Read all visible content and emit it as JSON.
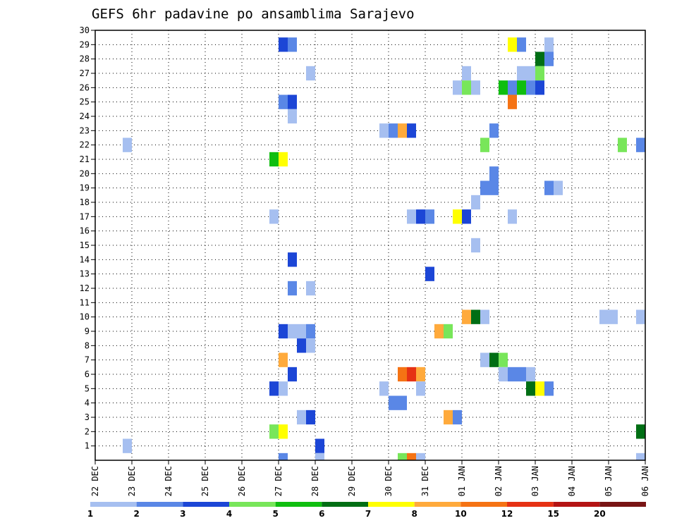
{
  "chart_data": {
    "type": "heatmap",
    "title": "GEFS 6hr padavine po ansamblima Sarajevo",
    "xlabel": "",
    "ylabel": "",
    "x_ticks": [
      "22 DEC",
      "23 DEC",
      "24 DEC",
      "25 DEC",
      "26 DEC",
      "27 DEC",
      "28 DEC",
      "29 DEC",
      "30 DEC",
      "31 DEC",
      "01 JAN",
      "02 JAN",
      "03 JAN",
      "04 JAN",
      "05 JAN",
      "06 JAN"
    ],
    "y_ticks": [
      "1",
      "2",
      "3",
      "4",
      "5",
      "6",
      "7",
      "8",
      "9",
      "10",
      "11",
      "12",
      "13",
      "14",
      "15",
      "16",
      "17",
      "18",
      "19",
      "20",
      "21",
      "22",
      "23",
      "24",
      "25",
      "26",
      "27",
      "28",
      "29",
      "30"
    ],
    "xlim_days": [
      0,
      15
    ],
    "ylim": [
      0,
      30
    ],
    "grid": true,
    "legend": {
      "placement": "bottom",
      "labels": [
        "1",
        "2",
        "3",
        "4",
        "5",
        "6",
        "7",
        "8",
        "10",
        "12",
        "15",
        "20"
      ],
      "colors": [
        "#a6bff0",
        "#5a87e6",
        "#1c46d6",
        "#78e65a",
        "#0fbe0f",
        "#006e14",
        "#ffff00",
        "#ffaa3c",
        "#f57314",
        "#e63214",
        "#b41414",
        "#781414"
      ]
    },
    "cell_width_days": 0.25,
    "cell_height": 1,
    "cells": [
      {
        "x": 5.0,
        "y": 29,
        "c": 2
      },
      {
        "x": 5.25,
        "y": 29,
        "c": 1
      },
      {
        "x": 11.25,
        "y": 29,
        "c": 6
      },
      {
        "x": 11.5,
        "y": 29,
        "c": 1
      },
      {
        "x": 12.25,
        "y": 29,
        "c": 0
      },
      {
        "x": 12.0,
        "y": 28,
        "c": 5
      },
      {
        "x": 12.25,
        "y": 28,
        "c": 1
      },
      {
        "x": 5.75,
        "y": 27,
        "c": 0
      },
      {
        "x": 10.0,
        "y": 27,
        "c": 0
      },
      {
        "x": 11.5,
        "y": 27,
        "c": 0
      },
      {
        "x": 11.75,
        "y": 27,
        "c": 0
      },
      {
        "x": 12.0,
        "y": 27,
        "c": 3
      },
      {
        "x": 9.75,
        "y": 26,
        "c": 0
      },
      {
        "x": 10.0,
        "y": 26,
        "c": 3
      },
      {
        "x": 10.25,
        "y": 26,
        "c": 0
      },
      {
        "x": 11.0,
        "y": 26,
        "c": 4
      },
      {
        "x": 11.25,
        "y": 26,
        "c": 1
      },
      {
        "x": 11.5,
        "y": 26,
        "c": 4
      },
      {
        "x": 11.75,
        "y": 26,
        "c": 1
      },
      {
        "x": 12.0,
        "y": 26,
        "c": 2
      },
      {
        "x": 5.0,
        "y": 25,
        "c": 1
      },
      {
        "x": 5.25,
        "y": 25,
        "c": 2
      },
      {
        "x": 11.25,
        "y": 25,
        "c": 8
      },
      {
        "x": 5.25,
        "y": 24,
        "c": 0
      },
      {
        "x": 7.75,
        "y": 23,
        "c": 0
      },
      {
        "x": 8.0,
        "y": 23,
        "c": 1
      },
      {
        "x": 8.25,
        "y": 23,
        "c": 7
      },
      {
        "x": 8.5,
        "y": 23,
        "c": 2
      },
      {
        "x": 10.75,
        "y": 23,
        "c": 1
      },
      {
        "x": 0.75,
        "y": 22,
        "c": 0
      },
      {
        "x": 10.5,
        "y": 22,
        "c": 3
      },
      {
        "x": 14.25,
        "y": 22,
        "c": 3
      },
      {
        "x": 14.75,
        "y": 22,
        "c": 1
      },
      {
        "x": 4.75,
        "y": 21,
        "c": 4
      },
      {
        "x": 5.0,
        "y": 21,
        "c": 6
      },
      {
        "x": 10.75,
        "y": 20,
        "c": 1
      },
      {
        "x": 10.5,
        "y": 19,
        "c": 1
      },
      {
        "x": 10.75,
        "y": 19,
        "c": 1
      },
      {
        "x": 12.25,
        "y": 19,
        "c": 1
      },
      {
        "x": 12.5,
        "y": 19,
        "c": 0
      },
      {
        "x": 10.25,
        "y": 18,
        "c": 0
      },
      {
        "x": 4.75,
        "y": 17,
        "c": 0
      },
      {
        "x": 8.5,
        "y": 17,
        "c": 0
      },
      {
        "x": 8.75,
        "y": 17,
        "c": 2
      },
      {
        "x": 9.0,
        "y": 17,
        "c": 1
      },
      {
        "x": 9.75,
        "y": 17,
        "c": 6
      },
      {
        "x": 10.0,
        "y": 17,
        "c": 2
      },
      {
        "x": 11.25,
        "y": 17,
        "c": 0
      },
      {
        "x": 10.25,
        "y": 15,
        "c": 0
      },
      {
        "x": 5.25,
        "y": 14,
        "c": 2
      },
      {
        "x": 9.0,
        "y": 13,
        "c": 2
      },
      {
        "x": 5.25,
        "y": 12,
        "c": 1
      },
      {
        "x": 5.75,
        "y": 12,
        "c": 0
      },
      {
        "x": 10.0,
        "y": 10,
        "c": 7
      },
      {
        "x": 10.25,
        "y": 10,
        "c": 5
      },
      {
        "x": 10.5,
        "y": 10,
        "c": 0
      },
      {
        "x": 13.75,
        "y": 10,
        "c": 0
      },
      {
        "x": 14.0,
        "y": 10,
        "c": 0
      },
      {
        "x": 14.75,
        "y": 10,
        "c": 0
      },
      {
        "x": 5.0,
        "y": 9,
        "c": 2
      },
      {
        "x": 5.25,
        "y": 9,
        "c": 0
      },
      {
        "x": 5.5,
        "y": 9,
        "c": 0
      },
      {
        "x": 5.75,
        "y": 9,
        "c": 1
      },
      {
        "x": 9.25,
        "y": 9,
        "c": 7
      },
      {
        "x": 9.5,
        "y": 9,
        "c": 3
      },
      {
        "x": 5.5,
        "y": 8,
        "c": 2
      },
      {
        "x": 5.75,
        "y": 8,
        "c": 0
      },
      {
        "x": 5.0,
        "y": 7,
        "c": 7
      },
      {
        "x": 10.5,
        "y": 7,
        "c": 0
      },
      {
        "x": 10.75,
        "y": 7,
        "c": 5
      },
      {
        "x": 11.0,
        "y": 7,
        "c": 3
      },
      {
        "x": 5.25,
        "y": 6,
        "c": 2
      },
      {
        "x": 8.25,
        "y": 6,
        "c": 8
      },
      {
        "x": 8.5,
        "y": 6,
        "c": 9
      },
      {
        "x": 8.75,
        "y": 6,
        "c": 7
      },
      {
        "x": 11.0,
        "y": 6,
        "c": 0
      },
      {
        "x": 11.25,
        "y": 6,
        "c": 1
      },
      {
        "x": 11.5,
        "y": 6,
        "c": 1
      },
      {
        "x": 11.75,
        "y": 6,
        "c": 0
      },
      {
        "x": 4.75,
        "y": 5,
        "c": 2
      },
      {
        "x": 5.0,
        "y": 5,
        "c": 0
      },
      {
        "x": 7.75,
        "y": 5,
        "c": 0
      },
      {
        "x": 8.75,
        "y": 5,
        "c": 0
      },
      {
        "x": 11.75,
        "y": 5,
        "c": 5
      },
      {
        "x": 12.0,
        "y": 5,
        "c": 6
      },
      {
        "x": 12.25,
        "y": 5,
        "c": 1
      },
      {
        "x": 8.0,
        "y": 4,
        "c": 1
      },
      {
        "x": 8.25,
        "y": 4,
        "c": 1
      },
      {
        "x": 5.5,
        "y": 3,
        "c": 0
      },
      {
        "x": 5.75,
        "y": 3,
        "c": 2
      },
      {
        "x": 9.5,
        "y": 3,
        "c": 7
      },
      {
        "x": 9.75,
        "y": 3,
        "c": 1
      },
      {
        "x": 4.75,
        "y": 2,
        "c": 3
      },
      {
        "x": 5.0,
        "y": 2,
        "c": 6
      },
      {
        "x": 14.75,
        "y": 2,
        "c": 5
      },
      {
        "x": 0.75,
        "y": 1,
        "c": 0
      },
      {
        "x": 6.0,
        "y": 1,
        "c": 2
      },
      {
        "x": 5.0,
        "y": 0,
        "c": 1
      },
      {
        "x": 6.0,
        "y": 0,
        "c": 0
      },
      {
        "x": 8.25,
        "y": 0,
        "c": 3
      },
      {
        "x": 8.5,
        "y": 0,
        "c": 8
      },
      {
        "x": 8.75,
        "y": 0,
        "c": 0
      },
      {
        "x": 14.75,
        "y": 0,
        "c": 0
      }
    ]
  }
}
